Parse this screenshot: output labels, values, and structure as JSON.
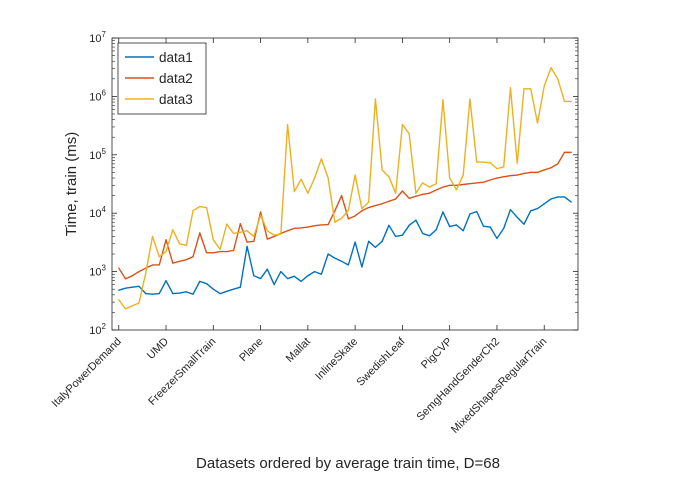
{
  "chart_data": {
    "type": "line",
    "title": "",
    "xlabel": "Datasets ordered by average train time, D=68",
    "ylabel": "Time, train (ms)",
    "yscale": "log",
    "ylim": [
      100,
      10000000
    ],
    "y_ticks": [
      {
        "value": 100,
        "base": "10",
        "exp": "2"
      },
      {
        "value": 1000,
        "base": "10",
        "exp": "3"
      },
      {
        "value": 10000,
        "base": "10",
        "exp": "4"
      },
      {
        "value": 100000,
        "base": "10",
        "exp": "5"
      },
      {
        "value": 1000000,
        "base": "10",
        "exp": "6"
      },
      {
        "value": 10000000,
        "base": "10",
        "exp": "7"
      }
    ],
    "xlim": [
      0,
      69
    ],
    "x_ticks": [
      {
        "x": 1,
        "label": "ItalyPowerDemand"
      },
      {
        "x": 8,
        "label": "UMD"
      },
      {
        "x": 15,
        "label": "FreezerSmallTrain"
      },
      {
        "x": 22,
        "label": "Plane"
      },
      {
        "x": 29,
        "label": "Mallat"
      },
      {
        "x": 36,
        "label": "InlineSkate"
      },
      {
        "x": 43,
        "label": "SwedishLeaf"
      },
      {
        "x": 50,
        "label": "PigCVP"
      },
      {
        "x": 57,
        "label": "SemgHandGenderCh2"
      },
      {
        "x": 64,
        "label": "MixedShapesRegularTrain"
      }
    ],
    "x": [
      1,
      2,
      3,
      4,
      5,
      6,
      7,
      8,
      9,
      10,
      11,
      12,
      13,
      14,
      15,
      16,
      17,
      18,
      19,
      20,
      21,
      22,
      23,
      24,
      25,
      26,
      27,
      28,
      29,
      30,
      31,
      32,
      33,
      34,
      35,
      36,
      37,
      38,
      39,
      40,
      41,
      42,
      43,
      44,
      45,
      46,
      47,
      48,
      49,
      50,
      51,
      52,
      53,
      54,
      55,
      56,
      57,
      58,
      59,
      60,
      61,
      62,
      63,
      64,
      65,
      66,
      67,
      68
    ],
    "legend": {
      "location": "top-left",
      "box": true
    },
    "grid": false,
    "series": [
      {
        "name": "data1",
        "color": "#0072BD",
        "values": [
          480,
          520,
          540,
          560,
          420,
          410,
          420,
          700,
          420,
          430,
          450,
          410,
          680,
          620,
          500,
          420,
          460,
          500,
          540,
          2700,
          850,
          760,
          1100,
          600,
          1000,
          760,
          830,
          680,
          850,
          1000,
          900,
          2000,
          1700,
          1500,
          1300,
          3200,
          1200,
          3300,
          2600,
          3300,
          6200,
          4000,
          4200,
          6200,
          7600,
          4500,
          4100,
          5200,
          10500,
          5900,
          6300,
          5000,
          9700,
          10700,
          6000,
          5800,
          3700,
          5500,
          11500,
          8500,
          6500,
          11000,
          12000,
          14500,
          17500,
          19000,
          19000,
          15500
        ]
      },
      {
        "name": "data2",
        "color": "#D95319",
        "values": [
          1150,
          750,
          850,
          1000,
          1150,
          1300,
          1300,
          3500,
          1400,
          1500,
          1600,
          1800,
          4600,
          2100,
          2100,
          2200,
          2200,
          2300,
          6600,
          3200,
          3300,
          10500,
          3600,
          4000,
          4500,
          5000,
          5500,
          5600,
          5800,
          6100,
          6300,
          6400,
          11000,
          20000,
          8000,
          9000,
          11000,
          12500,
          13500,
          14500,
          16000,
          17500,
          24000,
          18000,
          19500,
          21000,
          22000,
          25000,
          28000,
          30000,
          30000,
          31000,
          32000,
          33000,
          34000,
          37000,
          40000,
          42000,
          44000,
          45000,
          48000,
          50000,
          50000,
          55000,
          60000,
          70000,
          110000,
          110000
        ]
      },
      {
        "name": "data3",
        "color": "#EDB120",
        "values": [
          330,
          230,
          260,
          290,
          950,
          4000,
          1800,
          2200,
          5200,
          3000,
          2800,
          11000,
          13000,
          12500,
          3500,
          2400,
          6500,
          4500,
          4700,
          5000,
          4000,
          9200,
          5000,
          4200,
          4400,
          330000,
          23500,
          38000,
          22000,
          40000,
          85000,
          40000,
          7000,
          8200,
          11200,
          45000,
          12000,
          15500,
          900000,
          55000,
          42000,
          22000,
          330000,
          230000,
          22000,
          33000,
          28000,
          32000,
          880000,
          40000,
          25000,
          45000,
          900000,
          75000,
          75000,
          73000,
          58000,
          62000,
          1400000,
          72000,
          1350000,
          1350000,
          350000,
          1500000,
          3100000,
          2000000,
          820000,
          820000
        ]
      }
    ]
  }
}
